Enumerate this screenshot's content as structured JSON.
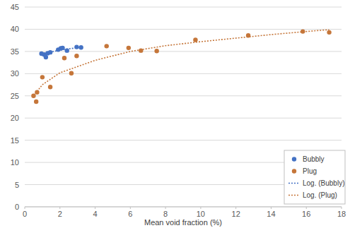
{
  "chart_data": {
    "type": "scatter",
    "x_label": "Mean void fraction (%)",
    "xlim": [
      0,
      18
    ],
    "xticks": [
      0,
      2,
      4,
      6,
      8,
      10,
      12,
      14,
      16,
      18
    ],
    "ylim": [
      0,
      45
    ],
    "yticks": [
      0,
      5,
      10,
      15,
      20,
      25,
      30,
      35,
      40,
      45
    ],
    "grid": true,
    "legend": "bottom-right",
    "series": [
      {
        "name": "Bubbly",
        "type": "scatter",
        "marker": "circle",
        "color": "#4472c4",
        "x": [
          0.95,
          1.1,
          1.2,
          1.3,
          1.45,
          1.9,
          2.05,
          2.15,
          2.4,
          2.95,
          3.2
        ],
        "values": [
          34.5,
          34.3,
          33.7,
          34.6,
          34.8,
          35.4,
          35.7,
          35.8,
          35.2,
          36.0,
          35.9
        ]
      },
      {
        "name": "Plug",
        "type": "scatter",
        "marker": "circle",
        "color": "#c5763a",
        "x": [
          0.5,
          0.65,
          0.7,
          1.0,
          1.45,
          2.25,
          2.65,
          2.95,
          4.65,
          5.9,
          6.6,
          7.5,
          9.7,
          12.7,
          15.8,
          17.3
        ],
        "values": [
          25.0,
          23.7,
          25.8,
          29.2,
          27.0,
          33.5,
          30.1,
          34.0,
          36.2,
          35.8,
          35.2,
          35.1,
          37.6,
          38.6,
          39.5,
          39.3
        ]
      },
      {
        "name": "Log. (Bubbly)",
        "type": "line",
        "line_style": "dotted",
        "color": "#4472c4",
        "x": [
          0.95,
          1.5,
          2.0,
          2.5,
          3.2
        ],
        "values": [
          34.3,
          34.9,
          35.3,
          35.6,
          35.9
        ]
      },
      {
        "name": "Log. (Plug)",
        "type": "line",
        "line_style": "dotted",
        "color": "#c5763a",
        "x": [
          0.5,
          1.0,
          2.0,
          4.0,
          6.0,
          8.0,
          10.0,
          12.0,
          14.0,
          16.0,
          17.3
        ],
        "values": [
          25.0,
          27.5,
          30.2,
          33.0,
          35.0,
          36.3,
          37.2,
          38.0,
          38.8,
          39.5,
          39.9
        ]
      }
    ]
  }
}
